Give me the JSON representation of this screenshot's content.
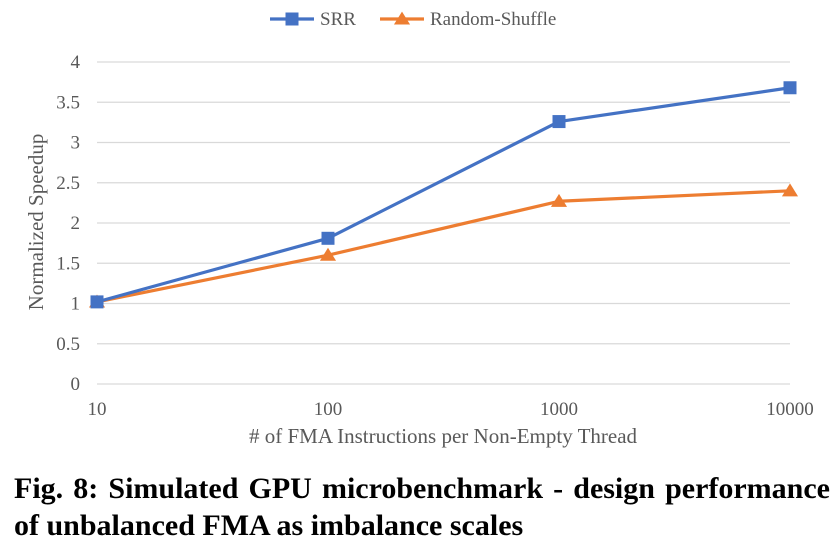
{
  "chart_data": {
    "type": "line",
    "x_scale": "log",
    "categories": [
      "10",
      "100",
      "1000",
      "10000"
    ],
    "x": [
      10,
      100,
      1000,
      10000
    ],
    "series": [
      {
        "name": "SRR",
        "values": [
          1.02,
          1.81,
          3.26,
          3.68
        ],
        "color": "#4472C4",
        "marker": "square"
      },
      {
        "name": "Random-Shuffle",
        "values": [
          1.02,
          1.6,
          2.27,
          2.4
        ],
        "color": "#ED7D31",
        "marker": "triangle"
      }
    ],
    "ylim": [
      0,
      4
    ],
    "yticks": [
      "0",
      "0.5",
      "1",
      "1.5",
      "2",
      "2.5",
      "3",
      "3.5",
      "4"
    ],
    "xlabel": "# of FMA Instructions per Non-Empty Thread",
    "ylabel": "Normalized Speedup",
    "grid": true,
    "legend_position": "top-center"
  },
  "caption": "Fig. 8: Simulated GPU microbenchmark - design performance of unbalanced FMA as imbalance scales"
}
